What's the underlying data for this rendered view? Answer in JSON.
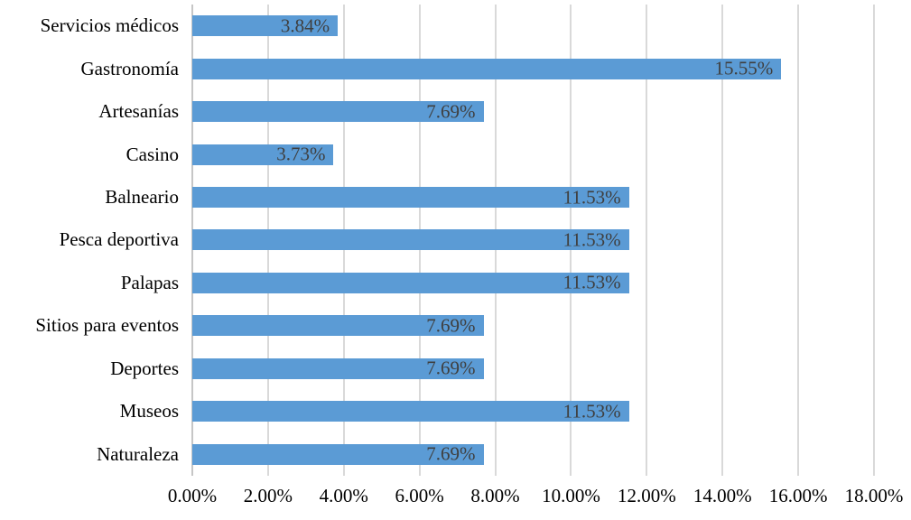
{
  "chart_data": {
    "type": "bar",
    "orientation": "horizontal",
    "title": "",
    "xlabel": "",
    "ylabel": "",
    "categories": [
      "Servicios médicos",
      "Gastronomía",
      "Artesanías",
      "Casino",
      "Balneario",
      "Pesca deportiva",
      "Palapas",
      "Sitios para eventos",
      "Deportes",
      "Museos",
      "Naturaleza"
    ],
    "values": [
      3.84,
      15.55,
      7.69,
      3.73,
      11.53,
      11.53,
      11.53,
      7.69,
      7.69,
      11.53,
      7.69
    ],
    "data_labels": [
      "3.84%",
      "15.55%",
      "7.69%",
      "3.73%",
      "11.53%",
      "11.53%",
      "11.53%",
      "7.69%",
      "7.69%",
      "11.53%",
      "7.69%"
    ],
    "xlim": [
      0,
      18
    ],
    "x_ticks": [
      "0.00%",
      "2.00%",
      "4.00%",
      "6.00%",
      "8.00%",
      "10.00%",
      "12.00%",
      "14.00%",
      "16.00%",
      "18.00%"
    ],
    "x_tick_values": [
      0,
      2,
      4,
      6,
      8,
      10,
      12,
      14,
      16,
      18
    ],
    "grid": true,
    "legend": false,
    "bar_color": "#5B9BD5",
    "gridline_color": "#D9D9D9",
    "axis_line_color": "#C6C6C6",
    "data_label_color": "#3F3F3F",
    "axis_text_color": "#000000",
    "background_color": "#FFFFFF"
  }
}
